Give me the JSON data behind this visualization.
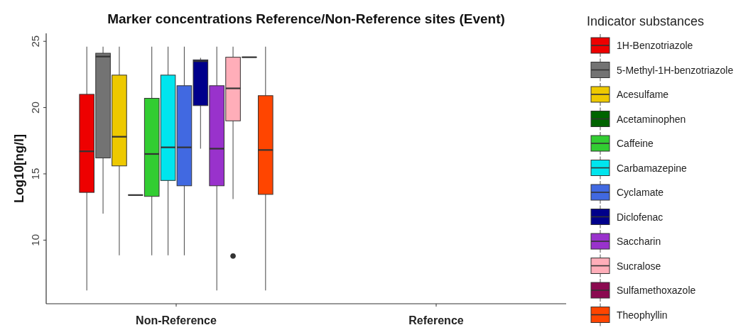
{
  "chart_data": {
    "type": "box",
    "title": "Marker concentrations Reference/Non-Reference sites (Event)",
    "ylabel": "Log10[ng/l]",
    "legend_title": "Indicator substances",
    "legend": "right",
    "grid": false,
    "categories": [
      "Non-Reference",
      "Reference"
    ],
    "ylim": [
      5.2,
      25.6
    ],
    "yticks": [
      10,
      15,
      20,
      25
    ],
    "series": [
      {
        "name": "1H-Benzotriazole",
        "color": "#ee0000",
        "boxes": [
          {
            "low": 6.2,
            "q1": 13.6,
            "median": 16.7,
            "q3": 21.0,
            "high": 24.6
          },
          null
        ]
      },
      {
        "name": "5-Methyl-1H-benzotriazole",
        "color": "#737373",
        "boxes": [
          {
            "low": 12.0,
            "q1": 16.2,
            "median": 23.85,
            "q3": 24.1,
            "high": 24.6
          },
          null
        ]
      },
      {
        "name": "Acesulfame",
        "color": "#eec900",
        "boxes": [
          {
            "low": 8.85,
            "q1": 15.6,
            "median": 17.8,
            "q3": 22.45,
            "high": 24.6
          },
          null
        ]
      },
      {
        "name": "Acetaminophen",
        "color": "#006400",
        "boxes": [
          {
            "low": 13.4,
            "q1": 13.4,
            "median": 13.4,
            "q3": 13.4,
            "high": 13.4
          },
          null
        ]
      },
      {
        "name": "Caffeine",
        "color": "#32cd32",
        "boxes": [
          {
            "low": 8.85,
            "q1": 13.3,
            "median": 16.5,
            "q3": 20.7,
            "high": 24.6
          },
          null
        ]
      },
      {
        "name": "Carbamazepine",
        "color": "#00e5ee",
        "boxes": [
          {
            "low": 8.85,
            "q1": 14.5,
            "median": 17.0,
            "q3": 22.45,
            "high": 24.6
          },
          null
        ]
      },
      {
        "name": "Cyclamate",
        "color": "#4169e1",
        "boxes": [
          {
            "low": 8.85,
            "q1": 14.1,
            "median": 17.0,
            "q3": 21.65,
            "high": 24.6
          },
          null
        ]
      },
      {
        "name": "Diclofenac",
        "color": "#00008b",
        "boxes": [
          {
            "low": 16.9,
            "q1": 20.15,
            "median": 23.5,
            "q3": 23.6,
            "high": 23.75
          },
          null
        ]
      },
      {
        "name": "Saccharin",
        "color": "#9932cc",
        "boxes": [
          {
            "low": 6.2,
            "q1": 14.1,
            "median": 16.9,
            "q3": 21.65,
            "high": 24.6
          },
          null
        ]
      },
      {
        "name": "Sucralose",
        "color": "#ffaeb9",
        "boxes": [
          {
            "low": 13.1,
            "q1": 19.0,
            "median": 21.45,
            "q3": 23.8,
            "high": 24.6,
            "outliers": [
              8.8
            ]
          },
          null
        ]
      },
      {
        "name": "Sulfamethoxazole",
        "color": "#8b0a50",
        "boxes": [
          {
            "low": 23.8,
            "q1": 23.8,
            "median": 23.8,
            "q3": 23.8,
            "high": 23.8
          },
          null
        ]
      },
      {
        "name": "Theophyllin",
        "color": "#ff4500",
        "boxes": [
          {
            "low": 6.2,
            "q1": 13.45,
            "median": 16.8,
            "q3": 20.9,
            "high": 24.6
          },
          null
        ]
      }
    ]
  }
}
